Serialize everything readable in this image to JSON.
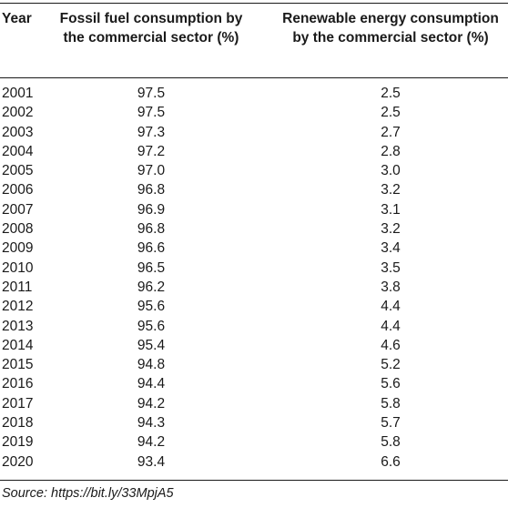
{
  "table": {
    "headers": {
      "year": "Year",
      "fossil": "Fossil fuel consumption by the commercial sector (%)",
      "renewable": "Renewable energy consumption by the commercial sector (%)"
    },
    "rows": [
      {
        "year": "2001",
        "fossil": "97.5",
        "renewable": "2.5"
      },
      {
        "year": "2002",
        "fossil": "97.5",
        "renewable": "2.5"
      },
      {
        "year": "2003",
        "fossil": "97.3",
        "renewable": "2.7"
      },
      {
        "year": "2004",
        "fossil": "97.2",
        "renewable": "2.8"
      },
      {
        "year": "2005",
        "fossil": "97.0",
        "renewable": "3.0"
      },
      {
        "year": "2006",
        "fossil": "96.8",
        "renewable": "3.2"
      },
      {
        "year": "2007",
        "fossil": "96.9",
        "renewable": "3.1"
      },
      {
        "year": "2008",
        "fossil": "96.8",
        "renewable": "3.2"
      },
      {
        "year": "2009",
        "fossil": "96.6",
        "renewable": "3.4"
      },
      {
        "year": "2010",
        "fossil": "96.5",
        "renewable": "3.5"
      },
      {
        "year": "2011",
        "fossil": "96.2",
        "renewable": "3.8"
      },
      {
        "year": "2012",
        "fossil": "95.6",
        "renewable": "4.4"
      },
      {
        "year": "2013",
        "fossil": "95.6",
        "renewable": "4.4"
      },
      {
        "year": "2014",
        "fossil": "95.4",
        "renewable": "4.6"
      },
      {
        "year": "2015",
        "fossil": "94.8",
        "renewable": "5.2"
      },
      {
        "year": "2016",
        "fossil": "94.4",
        "renewable": "5.6"
      },
      {
        "year": "2017",
        "fossil": "94.2",
        "renewable": "5.8"
      },
      {
        "year": "2018",
        "fossil": "94.3",
        "renewable": "5.7"
      },
      {
        "year": "2019",
        "fossil": "94.2",
        "renewable": "5.8"
      },
      {
        "year": "2020",
        "fossil": "93.4",
        "renewable": "6.6"
      }
    ]
  },
  "source": "Source: https://bit.ly/33MpjA5"
}
